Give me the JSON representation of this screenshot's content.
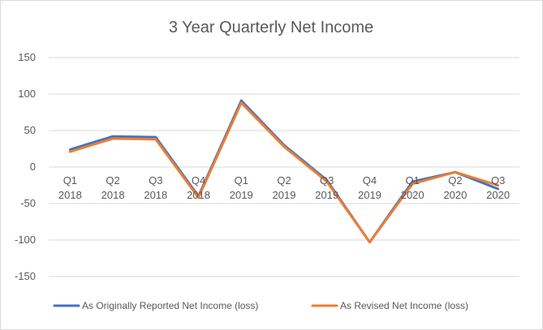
{
  "chart_data": {
    "type": "line",
    "title": "3 Year Quarterly Net Income",
    "xlabel": "",
    "ylabel": "",
    "ylim": [
      -150,
      150
    ],
    "yticks": [
      150,
      100,
      50,
      0,
      -50,
      -100,
      -150
    ],
    "grid": true,
    "legend": "bottom",
    "categories": [
      [
        "Q1",
        "2018"
      ],
      [
        "Q2",
        "2018"
      ],
      [
        "Q3",
        "2018"
      ],
      [
        "Q4",
        "2018"
      ],
      [
        "Q1",
        "2019"
      ],
      [
        "Q2",
        "2019"
      ],
      [
        "Q3",
        "2019"
      ],
      [
        "Q4",
        "2019"
      ],
      [
        "Q1",
        "2020"
      ],
      [
        "Q2",
        "2020"
      ],
      [
        "Q3",
        "2020"
      ]
    ],
    "series": [
      {
        "name": "As Originally Reported  Net Income (loss)",
        "color": "#4472c4",
        "values": [
          24,
          42,
          41,
          -40,
          91,
          30,
          -18,
          -103,
          -20,
          -7,
          -30
        ]
      },
      {
        "name": "As Revised  Net Income (loss)",
        "color": "#ed7d31",
        "values": [
          21,
          39,
          38,
          -42,
          88,
          28,
          -20,
          -103,
          -23,
          -7,
          -25
        ]
      }
    ]
  }
}
